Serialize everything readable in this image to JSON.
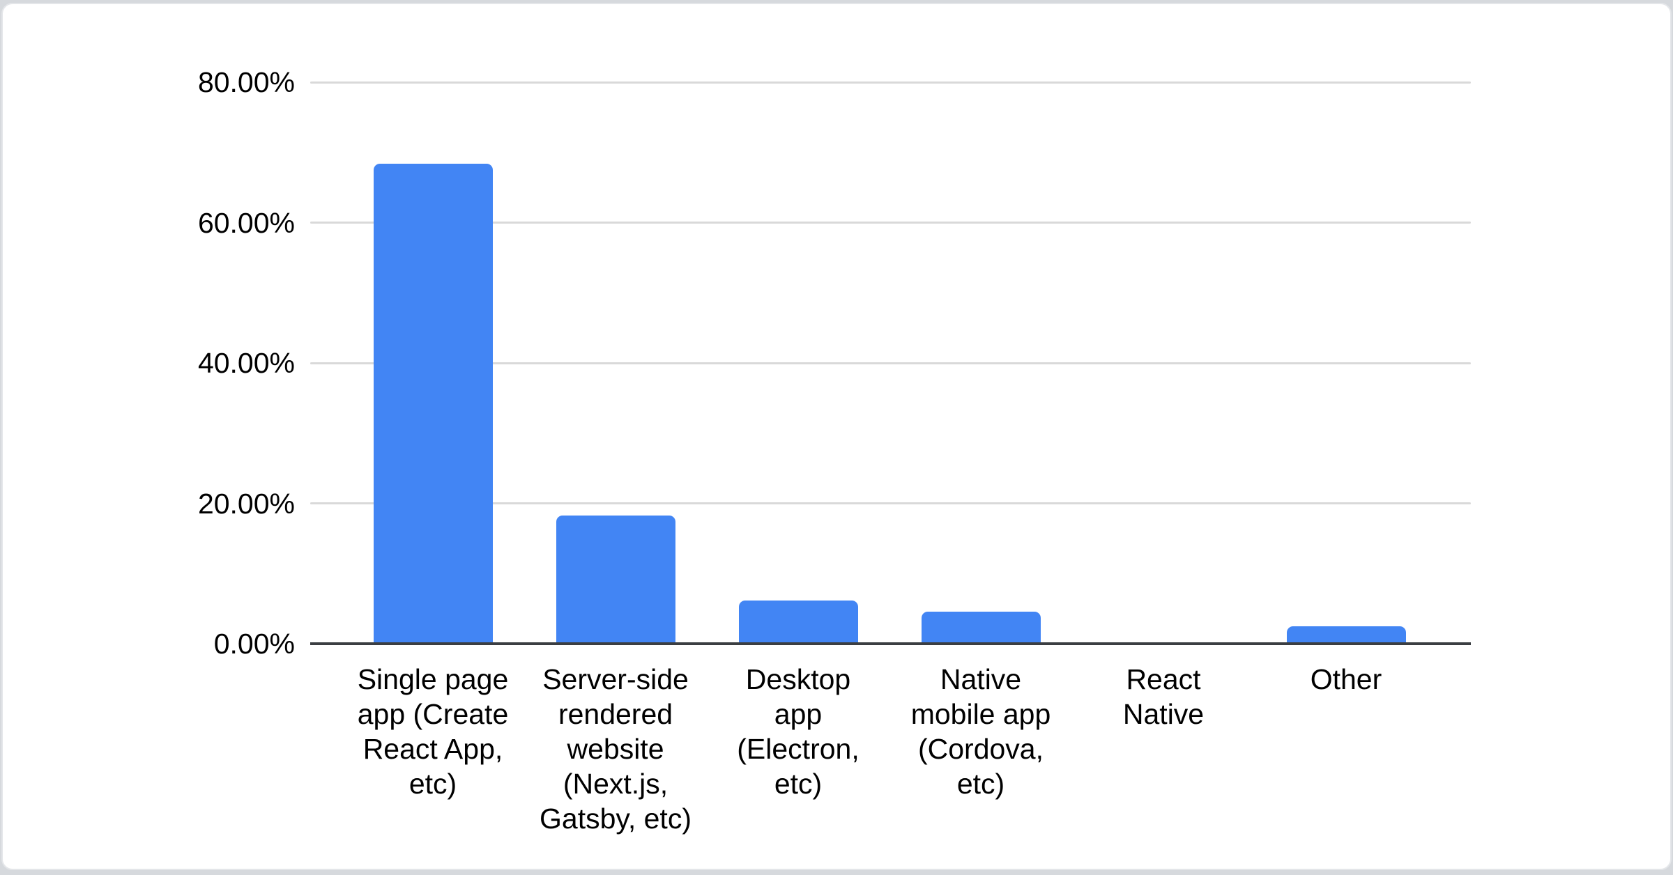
{
  "page": {
    "background_color": "#d6d9dd",
    "card_background": "#ffffff",
    "card_border_color": "#e4e6e9"
  },
  "chart_data": {
    "type": "bar",
    "title": "",
    "xlabel": "",
    "ylabel": "",
    "categories": [
      "Single page app (Create React App, etc)",
      "Server-side rendered website (Next.js, Gatsby, etc)",
      "Desktop app (Electron, etc)",
      "Native mobile app (Cordova, etc)",
      "React Native",
      "Other"
    ],
    "category_lines": [
      [
        "Single page",
        "app (Create",
        "React App,",
        "etc)"
      ],
      [
        "Server-side",
        "rendered",
        "website",
        "(Next.js,",
        "Gatsby, etc)"
      ],
      [
        "Desktop",
        "app",
        "(Electron,",
        "etc)"
      ],
      [
        "Native",
        "mobile app",
        "(Cordova,",
        "etc)"
      ],
      [
        "React",
        "Native"
      ],
      [
        "Other"
      ]
    ],
    "values": [
      68.4,
      18.3,
      6.2,
      4.6,
      0,
      2.5
    ],
    "value_unit": "%",
    "ylim": [
      0,
      80
    ],
    "ytick_labels": [
      "0.00%",
      "20.00%",
      "40.00%",
      "60.00%",
      "80.00%"
    ],
    "ytick_values": [
      0,
      20,
      40,
      60,
      80
    ],
    "grid": true,
    "legend_position": "none",
    "bar_color": "#4285f4",
    "gridline_color": "#d9d9d9",
    "axis_line_color": "#3b3e42",
    "text_color": "#000000"
  }
}
